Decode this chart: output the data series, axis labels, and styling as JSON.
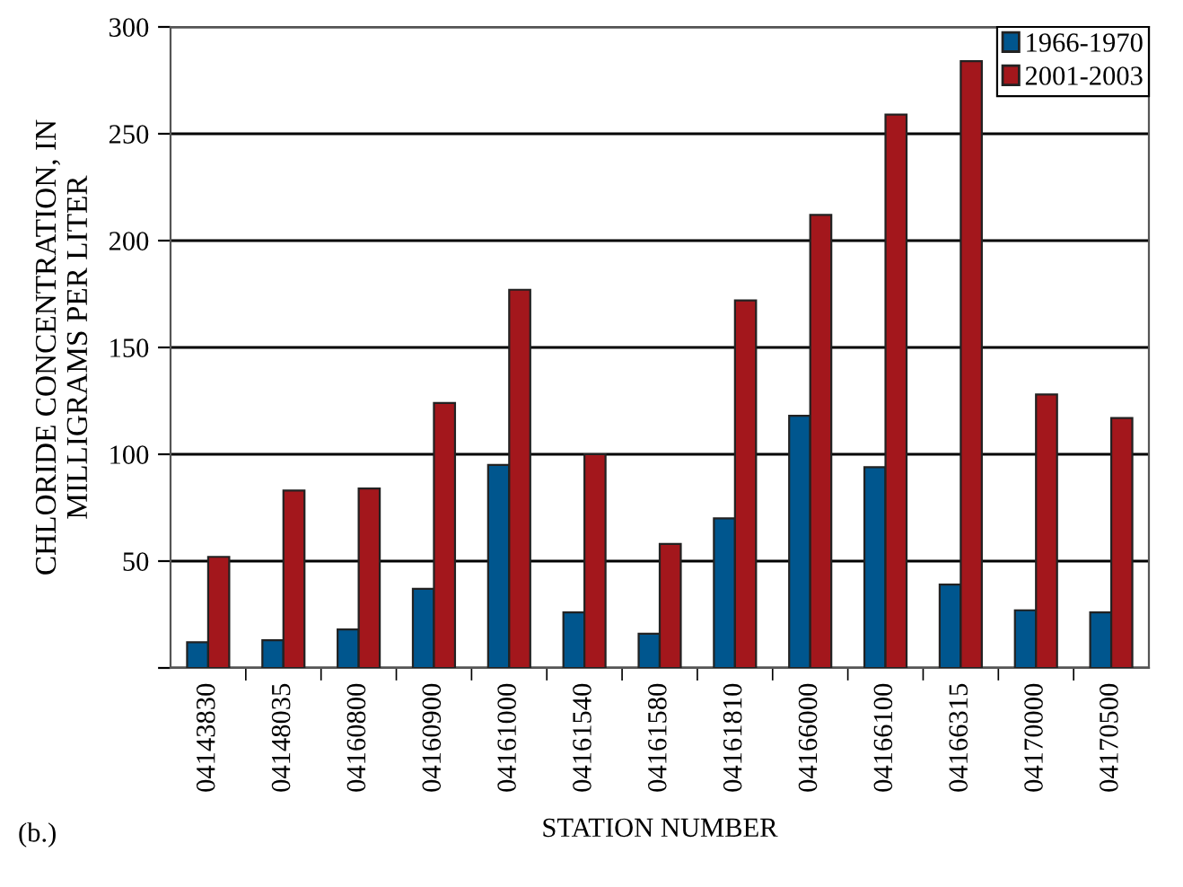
{
  "chart_data": {
    "type": "bar",
    "xlabel": "STATION NUMBER",
    "ylabel": "CHLORIDE CONCENTRATION, IN\nMILLIGRAMS PER LITER",
    "annotations": [
      "(b.)"
    ],
    "categories": [
      "04143830",
      "04148035",
      "04160800",
      "04160900",
      "04161000",
      "04161540",
      "04161580",
      "04161810",
      "04166000",
      "04166100",
      "04166315",
      "04170000",
      "04170500"
    ],
    "series": [
      {
        "name": "1966-1970",
        "color": "#00568e",
        "values": [
          12,
          13,
          18,
          37,
          95,
          26,
          16,
          70,
          118,
          94,
          39,
          27,
          26
        ]
      },
      {
        "name": "2001-2003",
        "color": "#a3171c",
        "values": [
          52,
          83,
          84,
          124,
          177,
          100,
          58,
          172,
          212,
          259,
          284,
          128,
          117
        ]
      }
    ],
    "ylim": [
      0,
      300
    ],
    "yticks": [
      {
        "value": 0,
        "label": null
      },
      50,
      100,
      150,
      200,
      250,
      300
    ],
    "grid": "y",
    "legend": "top right"
  }
}
